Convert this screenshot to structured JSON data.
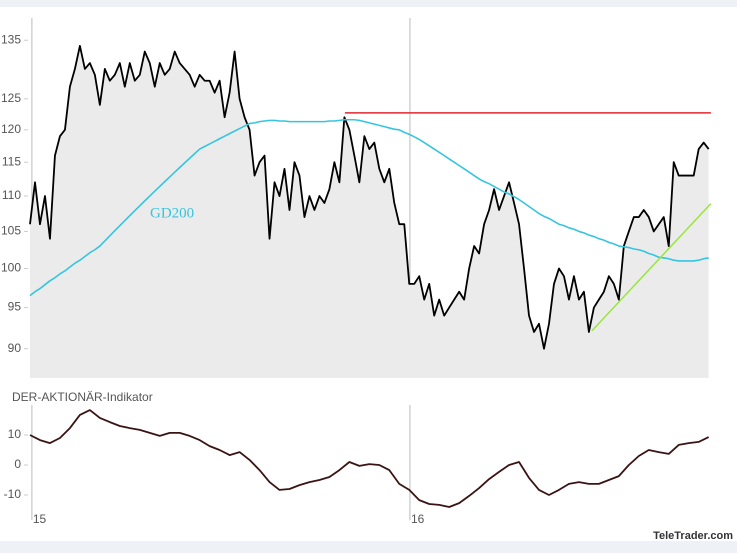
{
  "watermark": "TeleTrader.com",
  "chart_data": [
    {
      "type": "line",
      "log_y": true,
      "xlim": [
        2014.995,
        2016.799
      ],
      "ylim": [
        86.6,
        139
      ],
      "yticks": [
        90,
        95,
        100,
        105,
        110,
        115,
        120,
        125,
        135
      ],
      "x": [
        2014.995,
        2015.0082,
        2015.0214,
        2015.0346,
        2015.0478,
        2015.061,
        2015.0742,
        2015.0874,
        2015.1006,
        2015.1138,
        2015.127,
        2015.1402,
        2015.1534,
        2015.1666,
        2015.1798,
        2015.193,
        2015.2062,
        2015.2194,
        2015.2326,
        2015.2458,
        2015.259,
        2015.2722,
        2015.2854,
        2015.2986,
        2015.3118,
        2015.325,
        2015.3382,
        2015.3514,
        2015.3646,
        2015.3778,
        2015.391,
        2015.4042,
        2015.4174,
        2015.4306,
        2015.4438,
        2015.457,
        2015.4702,
        2015.4834,
        2015.4966,
        2015.5098,
        2015.523,
        2015.5362,
        2015.5494,
        2015.5626,
        2015.5758,
        2015.589,
        2015.6022,
        2015.6154,
        2015.6286,
        2015.6418,
        2015.655,
        2015.6682,
        2015.6814,
        2015.6946,
        2015.7078,
        2015.721,
        2015.7342,
        2015.7474,
        2015.7606,
        2015.7738,
        2015.787,
        2015.8002,
        2015.8134,
        2015.8266,
        2015.8398,
        2015.853,
        2015.8662,
        2015.8794,
        2015.8926,
        2015.9058,
        2015.919,
        2015.9322,
        2015.9454,
        2015.9586,
        2015.9718,
        2015.985,
        2015.9982,
        2016.0114,
        2016.0246,
        2016.0378,
        2016.051,
        2016.0642,
        2016.0774,
        2016.0906,
        2016.1038,
        2016.117,
        2016.1302,
        2016.1434,
        2016.1566,
        2016.1698,
        2016.183,
        2016.1962,
        2016.2094,
        2016.2226,
        2016.2358,
        2016.249,
        2016.2622,
        2016.2754,
        2016.2886,
        2016.3018,
        2016.315,
        2016.3282,
        2016.3414,
        2016.3546,
        2016.3678,
        2016.381,
        2016.3942,
        2016.4074,
        2016.4206,
        2016.4338,
        2016.447,
        2016.4602,
        2016.4734,
        2016.4866,
        2016.4998,
        2016.513,
        2016.5262,
        2016.5394,
        2016.5526,
        2016.5658,
        2016.579,
        2016.5922,
        2016.6054,
        2016.6186,
        2016.6318,
        2016.645,
        2016.6582,
        2016.6714,
        2016.6846,
        2016.6978,
        2016.711,
        2016.7242,
        2016.7374,
        2016.7506,
        2016.7638,
        2016.777,
        2016.7902
      ],
      "series": [
        {
          "color": "#000000",
          "fill": "#ebebeb",
          "values": [
            106,
            112,
            106,
            110,
            104,
            116,
            119,
            120,
            127,
            130,
            134,
            130,
            131,
            129,
            124,
            130,
            128,
            129,
            131,
            127,
            131,
            128,
            129,
            133,
            131,
            127,
            131,
            129,
            130,
            133,
            131,
            130,
            129,
            127,
            129,
            128,
            128,
            126,
            128,
            122,
            126,
            133,
            125,
            122,
            120,
            113,
            115,
            116,
            104,
            112,
            110,
            114,
            108,
            115,
            113,
            107,
            110,
            108,
            110,
            109,
            111,
            115,
            112,
            122,
            120,
            116,
            112,
            119,
            117,
            118,
            114,
            112,
            114,
            109,
            106,
            106,
            98,
            98,
            99,
            96,
            98,
            94,
            96,
            94,
            95,
            96,
            97,
            96,
            100,
            103,
            102,
            106,
            108,
            111,
            108,
            110,
            112,
            109,
            106,
            100,
            94,
            92,
            93,
            90,
            93,
            98,
            100,
            99,
            96,
            99,
            96,
            97,
            92,
            95,
            96,
            97,
            99,
            98,
            96,
            103,
            105,
            107,
            107,
            108,
            107,
            105,
            106,
            107,
            103,
            115,
            113,
            113,
            113,
            113,
            117,
            118,
            117
          ]
        },
        {
          "name": "GD200",
          "color": "#35c5e0",
          "values": [
            96.5,
            97.0,
            97.4,
            97.9,
            98.4,
            98.8,
            99.3,
            99.7,
            100.2,
            100.7,
            101.1,
            101.6,
            102.1,
            102.5,
            103.0,
            103.7,
            104.4,
            105.1,
            105.8,
            106.5,
            107.2,
            107.9,
            108.6,
            109.3,
            110.0,
            110.7,
            111.4,
            112.1,
            112.8,
            113.5,
            114.2,
            114.9,
            115.6,
            116.3,
            117.0,
            117.4,
            117.8,
            118.2,
            118.6,
            119.0,
            119.4,
            119.8,
            120.2,
            120.6,
            121.0,
            121.1,
            121.3,
            121.4,
            121.5,
            121.5,
            121.4,
            121.4,
            121.3,
            121.3,
            121.3,
            121.3,
            121.3,
            121.3,
            121.3,
            121.3,
            121.4,
            121.4,
            121.5,
            121.6,
            121.6,
            121.6,
            121.5,
            121.3,
            121.1,
            120.9,
            120.7,
            120.5,
            120.3,
            120.1,
            120.0,
            119.6,
            119.3,
            118.9,
            118.5,
            118.0,
            117.5,
            117.0,
            116.5,
            116.0,
            115.5,
            115.0,
            114.5,
            114.0,
            113.5,
            113.0,
            112.5,
            112.1,
            111.8,
            111.4,
            111.0,
            110.6,
            110.3,
            109.9,
            109.5,
            109.0,
            108.5,
            108.0,
            107.5,
            107.1,
            106.8,
            106.4,
            106.0,
            105.8,
            105.5,
            105.3,
            105.0,
            104.8,
            104.5,
            104.3,
            104.0,
            103.8,
            103.5,
            103.3,
            103.0,
            102.9,
            102.8,
            102.6,
            102.5,
            102.3,
            102.0,
            101.8,
            101.5,
            101.4,
            101.3,
            101.1,
            101.0,
            101.0,
            101.0,
            101.0,
            101.1,
            101.3,
            101.4
          ]
        }
      ],
      "lines": [
        {
          "color": "#e3262f",
          "x": [
            2015.828,
            2016.796
          ],
          "values": [
            122.7,
            122.7
          ]
        },
        {
          "color": "#99e63a",
          "x": [
            2016.4815,
            2016.796
          ],
          "values": [
            92.15,
            108.9
          ]
        }
      ]
    },
    {
      "type": "line",
      "title": "DER-AKTIONÄR-Indikator",
      "xlim": [
        2014.995,
        2016.799
      ],
      "ylim": [
        -15,
        20
      ],
      "xticks": [
        {
          "value": 2015,
          "label": "15"
        },
        {
          "value": 2016,
          "label": "16"
        }
      ],
      "yticks": [
        -10,
        0,
        10
      ],
      "x": [
        2014.995,
        2015.0214,
        2015.0478,
        2015.0742,
        2015.1006,
        2015.127,
        2015.1534,
        2015.1798,
        2015.2062,
        2015.2326,
        2015.259,
        2015.2854,
        2015.3118,
        2015.3382,
        2015.3646,
        2015.391,
        2015.4174,
        2015.4438,
        2015.4702,
        2015.4966,
        2015.523,
        2015.5494,
        2015.5758,
        2015.6022,
        2015.6286,
        2015.655,
        2015.6814,
        2015.7078,
        2015.7342,
        2015.7606,
        2015.787,
        2015.8134,
        2015.8398,
        2015.8662,
        2015.8926,
        2015.919,
        2015.9454,
        2015.9718,
        2015.9982,
        2016.0246,
        2016.051,
        2016.0774,
        2016.1038,
        2016.1302,
        2016.1566,
        2016.183,
        2016.2094,
        2016.2358,
        2016.2622,
        2016.2886,
        2016.315,
        2016.3414,
        2016.3678,
        2016.3942,
        2016.4206,
        2016.447,
        2016.4734,
        2016.4998,
        2016.5262,
        2016.5526,
        2016.579,
        2016.6054,
        2016.6318,
        2016.6582,
        2016.6846,
        2016.711,
        2016.7374,
        2016.7638,
        2016.7902
      ],
      "series": [
        {
          "color": "#3a1414",
          "values": [
            10,
            8.3,
            7.3,
            9,
            12.3,
            16.7,
            18.3,
            15.7,
            14.3,
            13,
            12.3,
            11.7,
            10.7,
            9.7,
            10.7,
            10.7,
            9.7,
            8.3,
            6.3,
            5,
            3.3,
            4.3,
            1.7,
            -1.7,
            -5.7,
            -8.3,
            -8,
            -6.7,
            -5.7,
            -5,
            -4,
            -1.7,
            1,
            -0.3,
            0.3,
            0,
            -1.7,
            -6.3,
            -8.3,
            -11.7,
            -13,
            -13.3,
            -14,
            -12.7,
            -10.3,
            -7.7,
            -4.7,
            -2.3,
            0,
            1,
            -4.3,
            -8.3,
            -10,
            -8.3,
            -6.3,
            -5.7,
            -6.3,
            -6.3,
            -5,
            -3.7,
            0,
            3,
            5,
            4.3,
            3.7,
            6.7,
            7.3,
            7.7,
            9.3
          ]
        }
      ]
    }
  ]
}
